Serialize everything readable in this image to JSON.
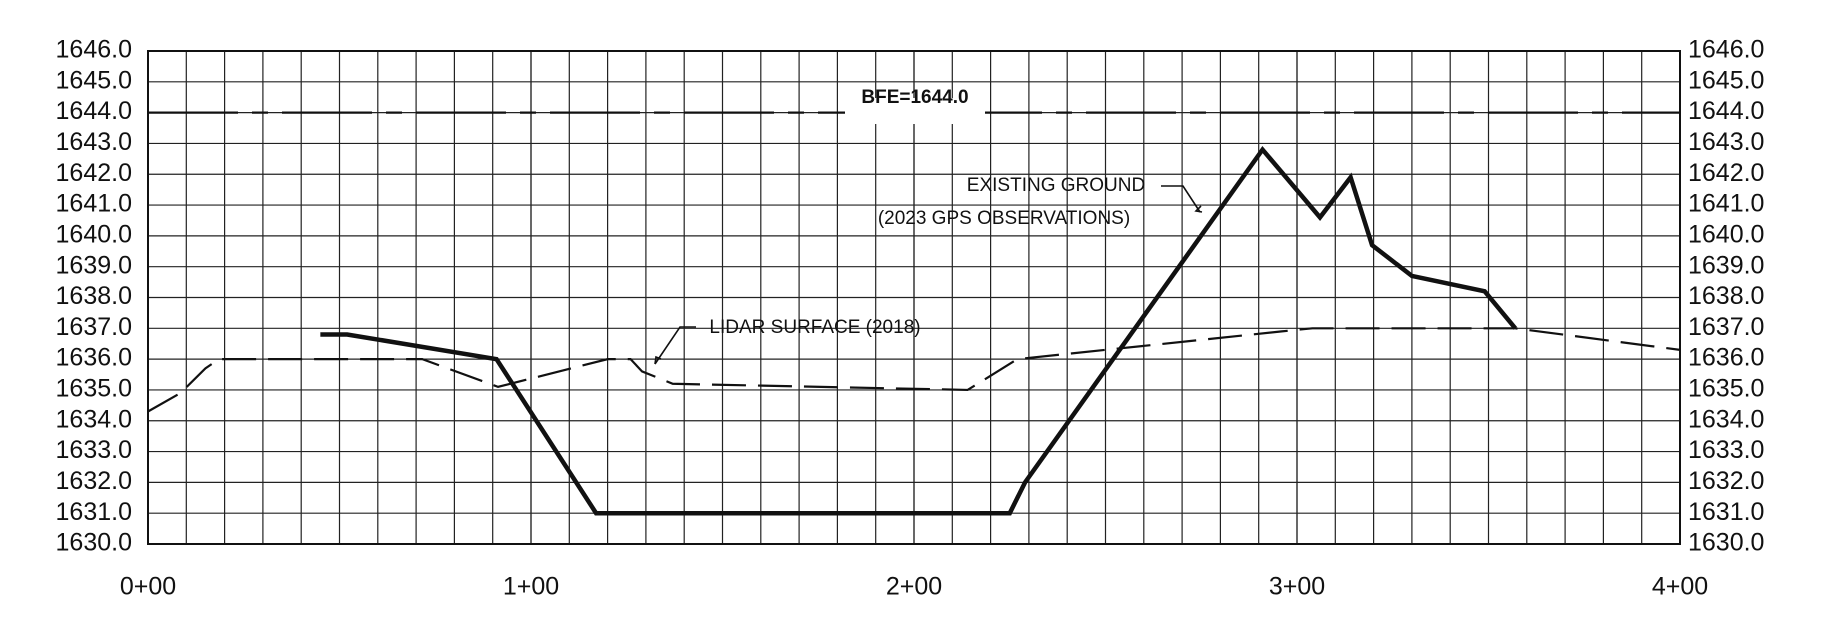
{
  "chart_data": {
    "type": "line",
    "xlim": [
      0,
      400
    ],
    "xticks": [
      {
        "value": 0,
        "label": "0+00"
      },
      {
        "value": 100,
        "label": "1+00"
      },
      {
        "value": 200,
        "label": "2+00"
      },
      {
        "value": 300,
        "label": "3+00"
      },
      {
        "value": 400,
        "label": "4+00"
      }
    ],
    "ylim": [
      1630,
      1646
    ],
    "yticks": [
      {
        "value": 1630,
        "label": "1630.0"
      },
      {
        "value": 1631,
        "label": "1631.0"
      },
      {
        "value": 1632,
        "label": "1632.0"
      },
      {
        "value": 1633,
        "label": "1633.0"
      },
      {
        "value": 1634,
        "label": "1634.0"
      },
      {
        "value": 1635,
        "label": "1635.0"
      },
      {
        "value": 1636,
        "label": "1636.0"
      },
      {
        "value": 1637,
        "label": "1637.0"
      },
      {
        "value": 1638,
        "label": "1638.0"
      },
      {
        "value": 1639,
        "label": "1639.0"
      },
      {
        "value": 1640,
        "label": "1640.0"
      },
      {
        "value": 1641,
        "label": "1641.0"
      },
      {
        "value": 1642,
        "label": "1642.0"
      },
      {
        "value": 1643,
        "label": "1643.0"
      },
      {
        "value": 1644,
        "label": "1644.0"
      },
      {
        "value": 1645,
        "label": "1645.0"
      },
      {
        "value": 1646,
        "label": "1646.0"
      }
    ],
    "grid": true,
    "series": [
      {
        "color": "#111111",
        "style": "solid",
        "x": [
          45,
          52,
          91,
          117,
          225,
          229,
          291,
          306,
          314,
          319.6,
          330,
          349,
          357
        ],
        "values": [
          1636.8,
          1636.8,
          1636.0,
          1631.0,
          1631.0,
          1632.0,
          1642.8,
          1640.6,
          1641.9,
          1639.7,
          1638.7,
          1638.2,
          1637.0
        ]
      },
      {
        "color": "#111111",
        "style": "dashed",
        "x": [
          0,
          8.5,
          15,
          18.5,
          71.6,
          91.4,
          120,
          126,
          129,
          137,
          214,
          227,
          296,
          304,
          357,
          400
        ],
        "values": [
          1634.3,
          1634.9,
          1635.7,
          1636.0,
          1636.0,
          1635.1,
          1636.0,
          1636.0,
          1635.6,
          1635.2,
          1635.0,
          1636.0,
          1636.9,
          1637.0,
          1637.0,
          1636.3
        ]
      }
    ],
    "reference_lines": [
      {
        "value": 1644.0,
        "label": "BFE=1644.0"
      }
    ],
    "annotations": [
      "EXISTING GROUND",
      "(2023 GPS OBSERVATIONS)",
      "LIDAR SURFACE (2018)"
    ]
  }
}
